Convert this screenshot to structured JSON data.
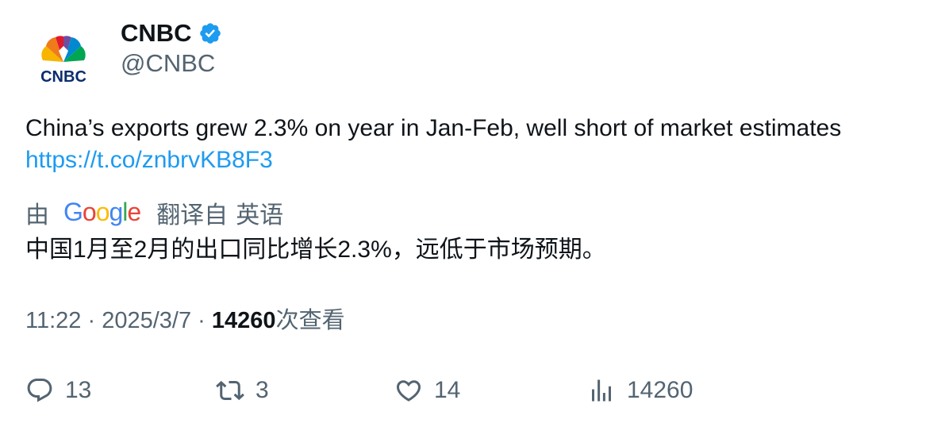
{
  "account": {
    "avatar_icon": "cnbc-peacock-logo",
    "logo_text": "CNBC",
    "display_name": "CNBC",
    "verified_icon": "verified-badge-icon",
    "handle": "@CNBC"
  },
  "tweet": {
    "text": "China’s exports grew 2.3% on year in Jan-Feb, well short of market estimates",
    "link": "https://t.co/znbrvKB8F3"
  },
  "translation": {
    "by_label": "由",
    "provider": "Google",
    "translated_from_label": "翻译自",
    "source_language": "英语",
    "translated_text": "中国1月至2月的出口同比增长2.3%，远低于市场预期。"
  },
  "meta": {
    "time": "11:22",
    "separator": "·",
    "date": "2025/3/7",
    "views_count": "14260",
    "views_label": "次查看"
  },
  "actions": {
    "replies": "13",
    "reposts": "3",
    "likes": "14",
    "views": "14260"
  },
  "colors": {
    "text_primary": "#0f1419",
    "text_secondary": "#536471",
    "link": "#1d9bf0",
    "verified": "#1d9bf0"
  }
}
